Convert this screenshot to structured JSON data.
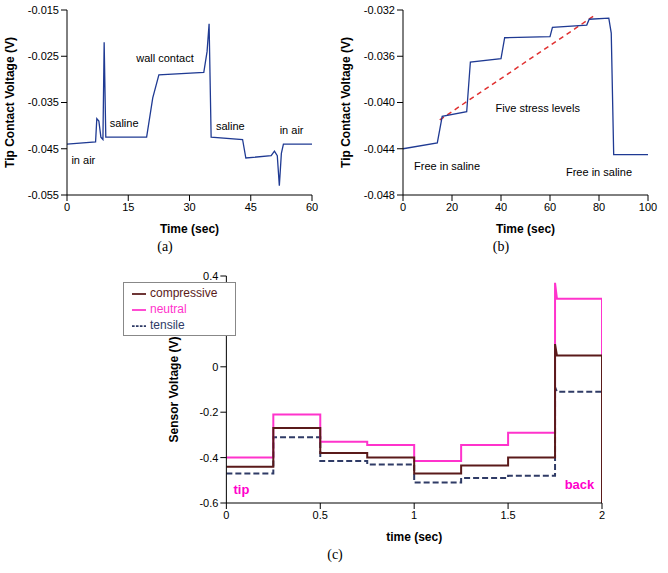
{
  "chart_data": [
    {
      "type": "line",
      "title": "(a)",
      "x_label": "Time (sec)",
      "y_label": "Tip Contact Voltage (V)",
      "x": [
        0,
        7,
        7.3,
        7.8,
        8.3,
        8.8,
        9.1,
        9.5,
        19.5,
        21,
        22.5,
        33.5,
        34.3,
        34.8,
        35.3,
        43,
        43.8,
        50,
        50.8,
        51.5,
        52,
        52.5,
        53,
        60
      ],
      "values": [
        -0.044,
        -0.0435,
        -0.0385,
        -0.039,
        -0.0425,
        -0.043,
        -0.022,
        -0.0425,
        -0.0425,
        -0.034,
        -0.029,
        -0.0285,
        -0.024,
        -0.018,
        -0.0425,
        -0.043,
        -0.047,
        -0.0465,
        -0.0455,
        -0.0465,
        -0.053,
        -0.046,
        -0.044,
        -0.044
      ],
      "color": "#1f3a93",
      "xlim": [
        0,
        60
      ],
      "xticks": [
        0,
        15,
        30,
        45,
        60
      ],
      "ylim": [
        -0.055,
        -0.015
      ],
      "yticks": [
        -0.055,
        -0.045,
        -0.035,
        -0.025,
        -0.015
      ],
      "annotations": [
        {
          "text": "in air"
        },
        {
          "text": "saline"
        },
        {
          "text": "wall contact"
        },
        {
          "text": "saline"
        },
        {
          "text": "in air"
        }
      ]
    },
    {
      "type": "line",
      "title": "(b)",
      "x_label": "Time (sec)",
      "y_label": "Tip Contact Voltage (V)",
      "x": [
        0,
        14,
        16,
        26,
        27.5,
        40,
        41.5,
        60,
        61,
        75,
        76,
        84,
        85,
        86,
        100
      ],
      "values": [
        -0.044,
        -0.0435,
        -0.0412,
        -0.0408,
        -0.0365,
        -0.0362,
        -0.0344,
        -0.0343,
        -0.0335,
        -0.0333,
        -0.0328,
        -0.0327,
        -0.034,
        -0.0445,
        -0.0445
      ],
      "color": "#1f3a93",
      "xlim": [
        0,
        100
      ],
      "xticks": [
        0,
        20,
        40,
        60,
        80,
        100
      ],
      "ylim": [
        -0.048,
        -0.032
      ],
      "yticks": [
        -0.048,
        -0.044,
        {
          "value": -0.04,
          "label": "-0.040"
        },
        -0.036,
        -0.032
      ],
      "annotations": [
        {
          "text": "Free in saline"
        },
        {
          "text": "Five stress levels"
        },
        {
          "text": "Free in saline"
        }
      ]
    },
    {
      "type": "line",
      "title": "(c)",
      "x_label": "time (sec)",
      "y_label": "Sensor Voltage (V)",
      "x": [
        0,
        0.25,
        0.25,
        0.5,
        0.5,
        0.75,
        0.75,
        1,
        1,
        1.25,
        1.25,
        1.5,
        1.5,
        1.75,
        1.75,
        1.76,
        2,
        2
      ],
      "series": [
        {
          "name": "tensile",
          "color": "#2f3b66",
          "line_style": "dashed",
          "values": [
            -0.47,
            -0.47,
            -0.31,
            -0.31,
            -0.415,
            -0.415,
            -0.43,
            -0.43,
            -0.51,
            -0.51,
            -0.49,
            -0.49,
            -0.48,
            -0.48,
            -0.09,
            -0.11,
            -0.11,
            -0.6
          ]
        },
        {
          "name": "neutral",
          "color": "#ff33cc",
          "line_style": "solid",
          "values": [
            -0.4,
            -0.4,
            -0.21,
            -0.21,
            -0.33,
            -0.33,
            -0.345,
            -0.345,
            -0.415,
            -0.415,
            -0.345,
            -0.345,
            -0.29,
            -0.29,
            0.37,
            0.3,
            0.3,
            -0.6
          ]
        },
        {
          "name": "compressive",
          "color": "#5a1a1a",
          "line_style": "solid",
          "values": [
            -0.44,
            -0.44,
            -0.27,
            -0.27,
            -0.38,
            -0.38,
            -0.4,
            -0.4,
            -0.47,
            -0.47,
            -0.435,
            -0.435,
            -0.4,
            -0.4,
            0.1,
            0.05,
            0.05,
            -0.6
          ]
        }
      ],
      "xlim": [
        0,
        2
      ],
      "xticks": [
        0,
        0.5,
        1,
        1.5,
        2
      ],
      "ylim": [
        -0.6,
        0.4
      ],
      "yticks": [
        -0.6,
        -0.4,
        -0.2,
        0,
        0.2,
        0.4
      ],
      "legend": "upper left",
      "annotations": [
        {
          "text": "tip",
          "color": "#ff00cc"
        },
        {
          "text": "back",
          "color": "#ff00cc"
        }
      ]
    }
  ]
}
